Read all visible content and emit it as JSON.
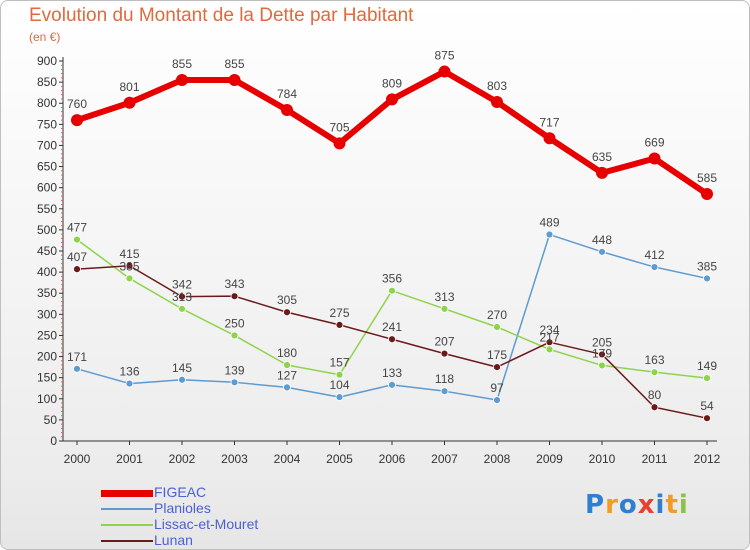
{
  "header": {
    "title": "Evolution du Montant de la Dette par Habitant",
    "unit": "(en €)"
  },
  "logo": {
    "text": "Proxiti",
    "colors": [
      "#2f7fd0",
      "#f29b25",
      "#2f7fd0",
      "#e8402f",
      "#2f7fd0",
      "#f29b25",
      "#8bc34a"
    ]
  },
  "chart_data": {
    "type": "line",
    "title": "Evolution du Montant de la Dette par Habitant",
    "subtitle": "(en €)",
    "x": [
      "2000",
      "2001",
      "2002",
      "2003",
      "2004",
      "2005",
      "2006",
      "2007",
      "2008",
      "2009",
      "2010",
      "2011",
      "2012"
    ],
    "ylim": [
      0,
      900
    ],
    "yticks": [
      0,
      50,
      100,
      150,
      200,
      250,
      300,
      350,
      400,
      450,
      500,
      550,
      600,
      650,
      700,
      750,
      800,
      850,
      900
    ],
    "grid": false,
    "legend_position": "bottom-left",
    "series": [
      {
        "name": "FIGEAC",
        "color": "#e60000",
        "line_width": 6,
        "marker_r": 6,
        "values": [
          760,
          801,
          855,
          855,
          784,
          705,
          809,
          875,
          803,
          717,
          635,
          669,
          585
        ]
      },
      {
        "name": "Planioles",
        "color": "#5d9bd1",
        "line_width": 1.5,
        "marker_r": 3.5,
        "values": [
          171,
          136,
          145,
          139,
          127,
          104,
          133,
          118,
          97,
          489,
          448,
          412,
          385
        ]
      },
      {
        "name": "Lissac-et-Mouret",
        "color": "#8ed44a",
        "line_width": 1.5,
        "marker_r": 3.5,
        "values": [
          477,
          385,
          313,
          250,
          180,
          157,
          356,
          313,
          270,
          217,
          179,
          163,
          149
        ]
      },
      {
        "name": "Lunan",
        "color": "#6b1a1a",
        "line_width": 1.5,
        "marker_r": 3.5,
        "values": [
          407,
          415,
          342,
          343,
          305,
          275,
          241,
          207,
          175,
          234,
          205,
          80,
          54
        ]
      }
    ]
  }
}
